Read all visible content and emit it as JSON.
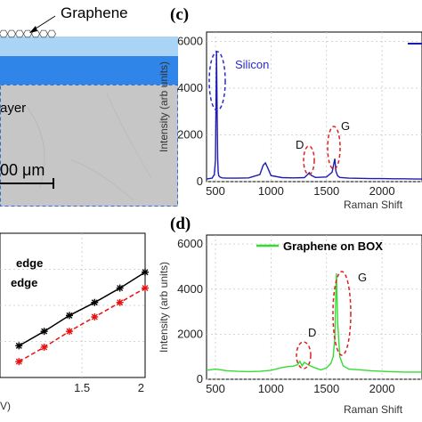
{
  "panel_a": {
    "graphene_label": "Graphene",
    "layer_label": "ayer",
    "scale_label": "00 μm",
    "colors": {
      "top_layer": "#a9d4f5",
      "mid_layer": "#2f86e8",
      "substrate": "#c4c4c4"
    }
  },
  "panel_b": {
    "legend": [
      "edge",
      "edge"
    ],
    "x_ticks": [
      "1.5",
      "2"
    ],
    "x_label_fragment": "V)"
  },
  "panel_c": {
    "letter": "(c)",
    "annotations": {
      "silicon": "Silicon",
      "d": "D",
      "g": "G"
    }
  },
  "panel_d": {
    "letter": "(d)",
    "annotations": {
      "d": "D",
      "g": "G"
    }
  },
  "chart_data": [
    {
      "id": "c",
      "type": "line",
      "xlabel": "Raman Shift",
      "ylabel": "Intensity (arb units)",
      "xlim": [
        420,
        2360
      ],
      "ylim": [
        0,
        6400
      ],
      "x_ticks": [
        500,
        1000,
        1500,
        2000
      ],
      "y_ticks": [
        0,
        2000,
        4000,
        6000
      ],
      "grid": true,
      "color": "#1c1cb0",
      "x": [
        420,
        470,
        490,
        500,
        505,
        510,
        515,
        520,
        525,
        530,
        540,
        560,
        600,
        700,
        800,
        900,
        930,
        950,
        970,
        1000,
        1100,
        1200,
        1300,
        1330,
        1345,
        1360,
        1400,
        1500,
        1550,
        1575,
        1585,
        1600,
        1620,
        1700,
        1800,
        1900,
        2000,
        2100,
        2200,
        2300,
        2360
      ],
      "y": [
        110,
        150,
        300,
        900,
        3200,
        5600,
        3000,
        1000,
        400,
        250,
        200,
        160,
        150,
        150,
        160,
        300,
        700,
        800,
        600,
        260,
        170,
        160,
        170,
        300,
        380,
        280,
        180,
        200,
        400,
        980,
        450,
        250,
        180,
        150,
        140,
        130,
        130,
        120,
        120,
        110,
        110
      ],
      "legend": [
        {
          "color": "#1c1cb0"
        }
      ]
    },
    {
      "id": "d",
      "type": "line",
      "xlabel": "Raman Shift",
      "ylabel": "Intensity (arb units)",
      "xlim": [
        420,
        2360
      ],
      "ylim": [
        0,
        6400
      ],
      "x_ticks": [
        500,
        1000,
        1500,
        2000
      ],
      "y_ticks": [
        0,
        2000,
        4000,
        6000
      ],
      "grid": true,
      "color": "#33dd33",
      "x": [
        420,
        500,
        550,
        600,
        700,
        800,
        900,
        1000,
        1100,
        1150,
        1200,
        1240,
        1260,
        1280,
        1300,
        1350,
        1400,
        1450,
        1500,
        1540,
        1560,
        1575,
        1585,
        1590,
        1600,
        1620,
        1650,
        1700,
        1800,
        1900,
        2000,
        2100,
        2200,
        2300,
        2360
      ],
      "y": [
        400,
        450,
        420,
        380,
        350,
        340,
        350,
        400,
        520,
        560,
        580,
        650,
        800,
        600,
        750,
        600,
        500,
        420,
        500,
        700,
        1000,
        1800,
        4000,
        4700,
        2600,
        1000,
        600,
        450,
        420,
        380,
        350,
        330,
        320,
        320,
        320
      ],
      "legend": [
        {
          "name": "Graphene on BOX",
          "color": "#33dd33"
        }
      ]
    },
    {
      "id": "b",
      "type": "line",
      "xlim": [
        0.85,
        2.0
      ],
      "ylim": [
        0,
        1
      ],
      "x_ticks": [
        1.5,
        2
      ],
      "grid": true,
      "series": [
        {
          "name": "edge",
          "color": "#000000",
          "marker": "star",
          "x": [
            1.0,
            1.2,
            1.4,
            1.6,
            1.8,
            2.0
          ],
          "y": [
            0.22,
            0.32,
            0.43,
            0.52,
            0.62,
            0.73
          ]
        },
        {
          "name": "edge",
          "color": "#e81010",
          "marker": "star",
          "dashed": true,
          "x": [
            1.0,
            1.2,
            1.4,
            1.6,
            1.8,
            2.0
          ],
          "y": [
            0.11,
            0.21,
            0.32,
            0.42,
            0.52,
            0.62
          ]
        }
      ]
    }
  ]
}
